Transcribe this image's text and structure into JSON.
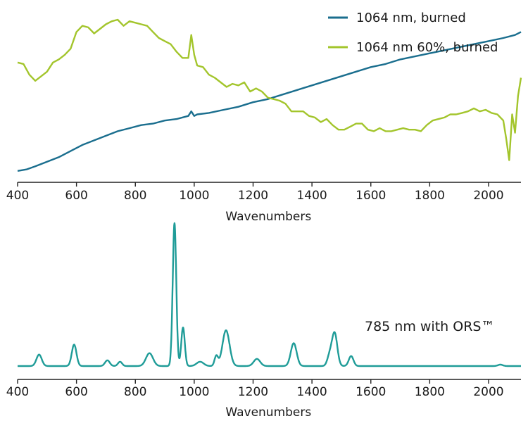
{
  "chart_data": [
    {
      "type": "line",
      "xlabel": "Wavenumbers",
      "xlim": [
        400,
        2110
      ],
      "xticks": [
        400,
        600,
        800,
        1000,
        1200,
        1400,
        1600,
        1800,
        2000
      ],
      "ylim": [
        0,
        100
      ],
      "legend_position": "top-right",
      "series": [
        {
          "name": "1064 nm, burned",
          "color": "#1a6e8e",
          "x": [
            400,
            430,
            460,
            500,
            540,
            580,
            620,
            660,
            700,
            740,
            780,
            820,
            860,
            900,
            940,
            980,
            990,
            1000,
            1010,
            1050,
            1100,
            1150,
            1200,
            1250,
            1300,
            1350,
            1400,
            1450,
            1500,
            1550,
            1600,
            1650,
            1700,
            1750,
            1800,
            1850,
            1900,
            1950,
            2000,
            2050,
            2090,
            2110
          ],
          "values": [
            1,
            2,
            4,
            7,
            10,
            14,
            18,
            21,
            24,
            27,
            29,
            31,
            32,
            34,
            35,
            37,
            40,
            37,
            38,
            39,
            41,
            43,
            46,
            48,
            51,
            54,
            57,
            60,
            63,
            66,
            69,
            71,
            74,
            76,
            78,
            80,
            82,
            84,
            86,
            88,
            90,
            92
          ]
        },
        {
          "name": "1064 nm 60%, burned",
          "color": "#a3c52c",
          "x": [
            400,
            420,
            440,
            460,
            480,
            500,
            520,
            540,
            560,
            580,
            600,
            620,
            640,
            660,
            680,
            700,
            720,
            740,
            760,
            780,
            800,
            820,
            840,
            860,
            880,
            900,
            920,
            940,
            960,
            980,
            990,
            1000,
            1010,
            1030,
            1050,
            1070,
            1090,
            1110,
            1130,
            1150,
            1170,
            1190,
            1210,
            1230,
            1250,
            1270,
            1290,
            1310,
            1330,
            1350,
            1370,
            1390,
            1410,
            1430,
            1450,
            1470,
            1490,
            1510,
            1530,
            1550,
            1570,
            1590,
            1610,
            1630,
            1650,
            1670,
            1690,
            1710,
            1730,
            1750,
            1770,
            1790,
            1810,
            1830,
            1850,
            1870,
            1890,
            1910,
            1930,
            1950,
            1970,
            1990,
            2010,
            2030,
            2050,
            2060,
            2070,
            2080,
            2090,
            2100,
            2110
          ],
          "values": [
            72,
            71,
            64,
            60,
            63,
            66,
            72,
            74,
            77,
            81,
            92,
            96,
            95,
            91,
            94,
            97,
            99,
            100,
            96,
            99,
            98,
            97,
            96,
            92,
            88,
            86,
            84,
            79,
            75,
            75,
            90,
            77,
            70,
            69,
            64,
            62,
            59,
            56,
            58,
            57,
            59,
            53,
            55,
            53,
            49,
            48,
            47,
            45,
            40,
            40,
            40,
            37,
            36,
            33,
            35,
            31,
            28,
            28,
            30,
            32,
            32,
            28,
            27,
            29,
            27,
            27,
            28,
            29,
            28,
            28,
            27,
            31,
            34,
            35,
            36,
            38,
            38,
            39,
            40,
            42,
            40,
            41,
            39,
            38,
            34,
            22,
            8,
            38,
            26,
            50,
            62
          ]
        }
      ]
    },
    {
      "type": "line",
      "xlabel": "Wavenumbers",
      "xlim": [
        400,
        2110
      ],
      "xticks": [
        400,
        600,
        800,
        1000,
        1200,
        1400,
        1600,
        1800,
        2000
      ],
      "ylim": [
        0,
        100
      ],
      "annotation": "785 nm with ORS™",
      "series": [
        {
          "color": "#1f9c98",
          "baseline": 0.5,
          "peaks": [
            {
              "x": 473,
              "height": 8,
              "width": 9
            },
            {
              "x": 592,
              "height": 15,
              "width": 8
            },
            {
              "x": 705,
              "height": 4,
              "width": 8
            },
            {
              "x": 748,
              "height": 3,
              "width": 7
            },
            {
              "x": 848,
              "height": 9,
              "width": 12
            },
            {
              "x": 933,
              "height": 100,
              "width": 6
            },
            {
              "x": 962,
              "height": 27,
              "width": 6
            },
            {
              "x": 1020,
              "height": 3,
              "width": 12
            },
            {
              "x": 1075,
              "height": 7,
              "width": 6
            },
            {
              "x": 1108,
              "height": 25,
              "width": 12
            },
            {
              "x": 1213,
              "height": 5,
              "width": 11
            },
            {
              "x": 1338,
              "height": 16,
              "width": 10
            },
            {
              "x": 1460,
              "height": 7,
              "width": 8
            },
            {
              "x": 1477,
              "height": 23,
              "width": 9
            },
            {
              "x": 1533,
              "height": 7,
              "width": 8
            },
            {
              "x": 2040,
              "height": 1,
              "width": 8
            }
          ]
        }
      ]
    }
  ]
}
